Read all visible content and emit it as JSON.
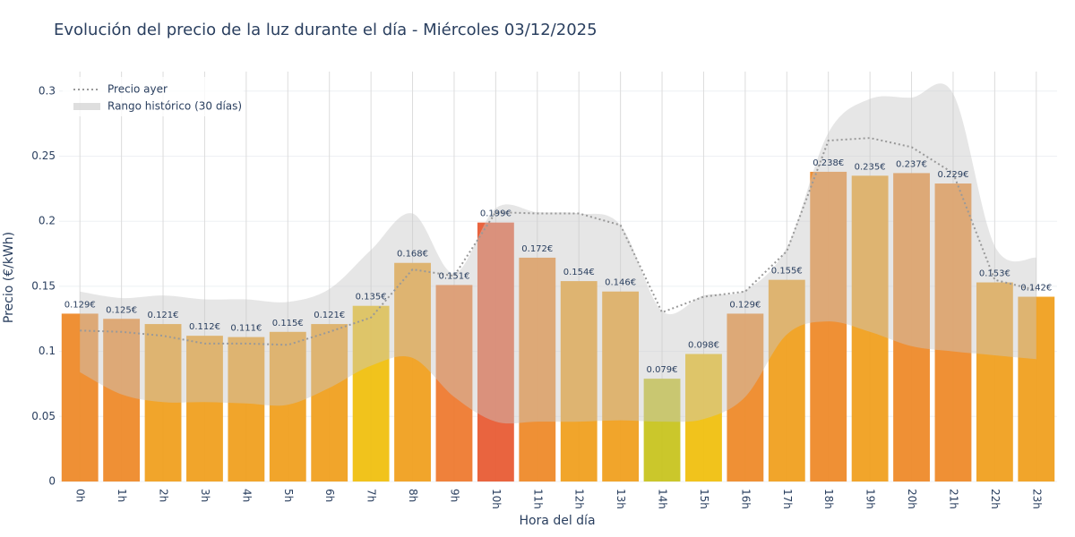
{
  "chart_data": {
    "type": "bar",
    "title": "Evolución del precio de la luz durante el día - Miércoles 03/12/2025",
    "x_label": "Hora del día",
    "y_label": "Precio (€/kWh)",
    "categories": [
      "0h",
      "1h",
      "2h",
      "3h",
      "4h",
      "5h",
      "6h",
      "7h",
      "8h",
      "9h",
      "10h",
      "11h",
      "12h",
      "13h",
      "14h",
      "15h",
      "16h",
      "17h",
      "18h",
      "19h",
      "20h",
      "21h",
      "22h",
      "23h"
    ],
    "values": [
      0.129,
      0.125,
      0.121,
      0.112,
      0.111,
      0.115,
      0.121,
      0.135,
      0.168,
      0.151,
      0.199,
      0.172,
      0.154,
      0.146,
      0.079,
      0.098,
      0.129,
      0.155,
      0.238,
      0.235,
      0.237,
      0.229,
      0.153,
      0.142
    ],
    "value_labels": [
      "0.129€",
      "0.125€",
      "0.121€",
      "0.112€",
      "0.111€",
      "0.115€",
      "0.121€",
      "0.135€",
      "0.168€",
      "0.151€",
      "0.199€",
      "0.172€",
      "0.154€",
      "0.146€",
      "0.079€",
      "0.098€",
      "0.129€",
      "0.155€",
      "0.238€",
      "0.235€",
      "0.237€",
      "0.229€",
      "0.153€",
      "0.142€"
    ],
    "colors": [
      "#ee8a2a",
      "#ee8a2a",
      "#f0a020",
      "#f0a020",
      "#f0a020",
      "#f0a020",
      "#f0a020",
      "#f0c010",
      "#f0a020",
      "#ee7a30",
      "#e85c35",
      "#ee8a2a",
      "#f0a020",
      "#f0a020",
      "#c8c420",
      "#f0c010",
      "#ee8a2a",
      "#f0a020",
      "#ee8a2a",
      "#f0a020",
      "#ee8a2a",
      "#ee8a2a",
      "#f0a020",
      "#f0a020"
    ],
    "lines": [
      {
        "name": "Precio ayer",
        "color": "#999999",
        "values": [
          0.116,
          0.115,
          0.112,
          0.106,
          0.106,
          0.105,
          0.115,
          0.126,
          0.163,
          0.158,
          0.207,
          0.206,
          0.206,
          0.197,
          0.13,
          0.142,
          0.146,
          0.177,
          0.262,
          0.264,
          0.257,
          0.237,
          0.155,
          0.147
        ]
      }
    ],
    "range": {
      "name": "Rango histórico (30 días)",
      "color": "#c8c8c8",
      "upper": [
        0.146,
        0.141,
        0.143,
        0.14,
        0.14,
        0.138,
        0.148,
        0.178,
        0.206,
        0.16,
        0.21,
        0.207,
        0.206,
        0.197,
        0.131,
        0.143,
        0.147,
        0.18,
        0.268,
        0.294,
        0.295,
        0.298,
        0.181,
        0.172
      ],
      "lower": [
        0.084,
        0.067,
        0.061,
        0.061,
        0.06,
        0.059,
        0.072,
        0.089,
        0.095,
        0.065,
        0.046,
        0.046,
        0.046,
        0.047,
        0.046,
        0.048,
        0.065,
        0.113,
        0.123,
        0.115,
        0.104,
        0.1,
        0.097,
        0.094
      ]
    },
    "ylim": [
      0,
      0.315
    ],
    "yticks": [
      0,
      0.05,
      0.1,
      0.15,
      0.2,
      0.25,
      0.3
    ],
    "grid": true,
    "legend": "top-left"
  }
}
